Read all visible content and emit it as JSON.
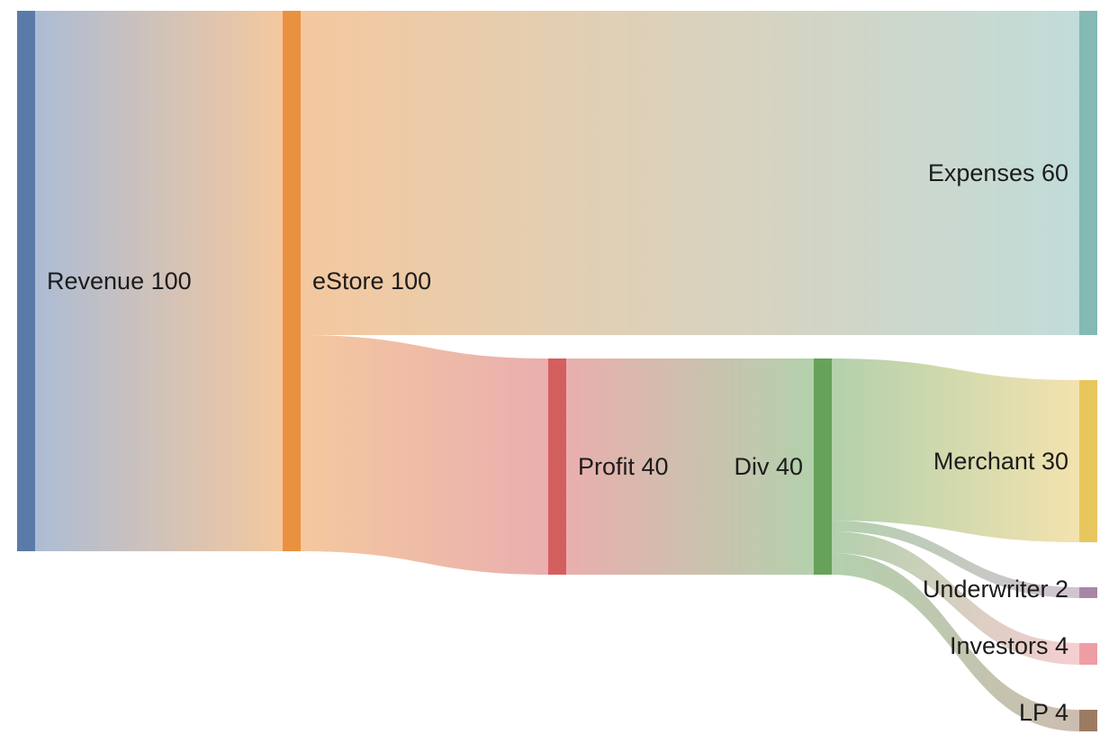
{
  "chart_data": {
    "type": "sankey",
    "nodes": [
      {
        "id": "revenue",
        "label": "Revenue 100",
        "name": "Revenue",
        "value": 100,
        "color": "#5a7aa9"
      },
      {
        "id": "estore",
        "label": "eStore 100",
        "name": "eStore",
        "value": 100,
        "color": "#e9913f"
      },
      {
        "id": "expenses",
        "label": "Expenses 60",
        "name": "Expenses",
        "value": 60,
        "color": "#84b9b4"
      },
      {
        "id": "profit",
        "label": "Profit 40",
        "name": "Profit",
        "value": 40,
        "color": "#d45f5f"
      },
      {
        "id": "div",
        "label": "Div 40",
        "name": "Div",
        "value": 40,
        "color": "#67a25a"
      },
      {
        "id": "merchant",
        "label": "Merchant 30",
        "name": "Merchant",
        "value": 30,
        "color": "#e7c65e"
      },
      {
        "id": "underwriter",
        "label": "Underwriter 2",
        "name": "Underwriter",
        "value": 2,
        "color": "#a887a6"
      },
      {
        "id": "investors",
        "label": "Investors 4",
        "name": "Investors",
        "value": 4,
        "color": "#ef9da5"
      },
      {
        "id": "lp",
        "label": "LP 4",
        "name": "LP",
        "value": 4,
        "color": "#9c7b63"
      }
    ],
    "links": [
      {
        "source": "revenue",
        "target": "estore",
        "value": 100
      },
      {
        "source": "estore",
        "target": "expenses",
        "value": 60
      },
      {
        "source": "estore",
        "target": "profit",
        "value": 40
      },
      {
        "source": "profit",
        "target": "div",
        "value": 40
      },
      {
        "source": "div",
        "target": "merchant",
        "value": 30
      },
      {
        "source": "div",
        "target": "underwriter",
        "value": 2
      },
      {
        "source": "div",
        "target": "investors",
        "value": 4
      },
      {
        "source": "div",
        "target": "lp",
        "value": 4
      }
    ]
  }
}
